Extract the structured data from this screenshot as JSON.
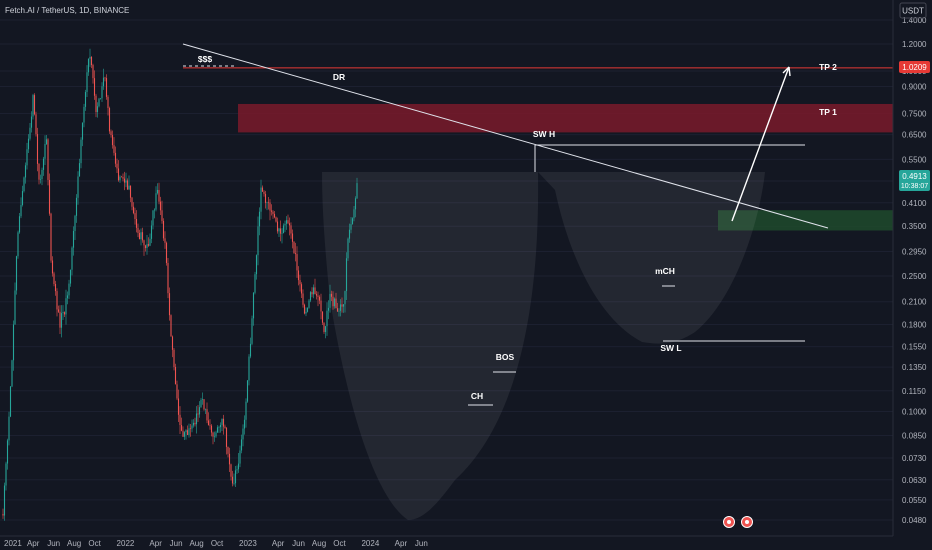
{
  "header": {
    "symbol": "Fetch.AI / TetherUS, 1D, BINANCE",
    "currency": "USDT"
  },
  "colors": {
    "background": "#131722",
    "up": "#26a69a",
    "down": "#ef5350",
    "resistance_zone": "#7a1a2a",
    "support_zone": "#1e4a2c",
    "tp2_line": "#e53935",
    "price_badge": "#26a69a",
    "tp2_badge": "#e53935"
  },
  "chart_data": {
    "type": "candlestick",
    "y_scale": "log",
    "y_ticks": [
      "1.4000",
      "1.2000",
      "1.0000",
      "0.9000",
      "0.7500",
      "0.6500",
      "0.5500",
      "0.4750",
      "0.4100",
      "0.3500",
      "0.2950",
      "0.2500",
      "0.2100",
      "0.1800",
      "0.1550",
      "0.1350",
      "0.1150",
      "0.1000",
      "0.0850",
      "0.0730",
      "0.0630",
      "0.0550",
      "0.0480"
    ],
    "x_ticks": [
      "2021",
      "Apr",
      "Jun",
      "Aug",
      "Oct",
      "2022",
      "Apr",
      "Jun",
      "Aug",
      "Oct",
      "2023",
      "Apr",
      "Jun",
      "Aug",
      "Oct",
      "2024",
      "Apr",
      "Jun"
    ],
    "price_path": [
      [
        "2021-01-01",
        0.05
      ],
      [
        "2021-01-20",
        0.1
      ],
      [
        "2021-02-15",
        0.35
      ],
      [
        "2021-03-20",
        0.65
      ],
      [
        "2021-04-01",
        0.85
      ],
      [
        "2021-04-20",
        0.45
      ],
      [
        "2021-05-10",
        0.65
      ],
      [
        "2021-05-25",
        0.27
      ],
      [
        "2021-06-20",
        0.18
      ],
      [
        "2021-07-15",
        0.22
      ],
      [
        "2021-08-05",
        0.4
      ],
      [
        "2021-09-01",
        0.82
      ],
      [
        "2021-09-15",
        1.18
      ],
      [
        "2021-10-05",
        0.78
      ],
      [
        "2021-11-01",
        0.95
      ],
      [
        "2021-11-15",
        0.68
      ],
      [
        "2021-12-10",
        0.5
      ],
      [
        "2022-01-10",
        0.45
      ],
      [
        "2022-02-10",
        0.33
      ],
      [
        "2022-03-10",
        0.3
      ],
      [
        "2022-04-05",
        0.45
      ],
      [
        "2022-05-01",
        0.3
      ],
      [
        "2022-05-15",
        0.17
      ],
      [
        "2022-06-15",
        0.085
      ],
      [
        "2022-07-20",
        0.09
      ],
      [
        "2022-08-15",
        0.11
      ],
      [
        "2022-09-20",
        0.085
      ],
      [
        "2022-10-20",
        0.095
      ],
      [
        "2022-11-15",
        0.06
      ],
      [
        "2022-12-05",
        0.072
      ],
      [
        "2022-12-25",
        0.1
      ],
      [
        "2023-01-15",
        0.2
      ],
      [
        "2023-02-01",
        0.35
      ],
      [
        "2023-02-10",
        0.45
      ],
      [
        "2023-03-10",
        0.38
      ],
      [
        "2023-04-05",
        0.34
      ],
      [
        "2023-05-01",
        0.36
      ],
      [
        "2023-06-01",
        0.25
      ],
      [
        "2023-06-20",
        0.19
      ],
      [
        "2023-07-10",
        0.23
      ],
      [
        "2023-08-01",
        0.21
      ],
      [
        "2023-08-18",
        0.165
      ],
      [
        "2023-09-01",
        0.22
      ],
      [
        "2023-09-25",
        0.2
      ],
      [
        "2023-10-15",
        0.21
      ],
      [
        "2023-10-25",
        0.31
      ],
      [
        "2023-11-10",
        0.38
      ],
      [
        "2023-11-25",
        0.49
      ]
    ],
    "price_axis_labels": {
      "current_price": "0.4913",
      "countdown": "10:38:07",
      "tp2_price": "1.0209"
    },
    "zones": [
      {
        "label": "TP 1",
        "low": 0.66,
        "high": 0.8,
        "color": "resistance"
      },
      {
        "label": "",
        "low": 0.34,
        "high": 0.39,
        "color": "support"
      }
    ],
    "levels": [
      {
        "label": "TP 2",
        "price": 1.0209
      },
      {
        "label": "SW H",
        "price": 0.59
      },
      {
        "label": "SW L",
        "price": 0.162
      }
    ],
    "annotations": [
      "$$$",
      "DR",
      "SW H",
      "BOS",
      "CH",
      "mCH",
      "SW L",
      "TP 1",
      "TP 2"
    ]
  }
}
